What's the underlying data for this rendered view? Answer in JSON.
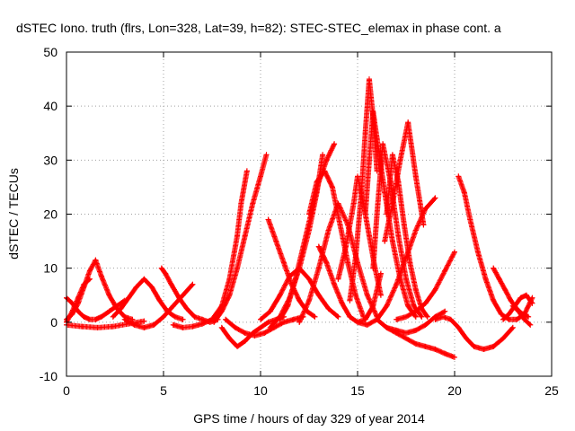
{
  "chart_data": {
    "type": "scatter",
    "title": "dSTEC Iono. truth (flrs, Lon=328, Lat=39, h=82): STEC-STEC_elemax in phase cont. a",
    "xlabel": "GPS time / hours of day 329 of year 2014",
    "ylabel": "dSTEC  / TECUs",
    "xlim": [
      0,
      25
    ],
    "ylim": [
      -10,
      50
    ],
    "xticks": [
      0,
      5,
      10,
      15,
      20,
      25
    ],
    "yticks": [
      -10,
      0,
      10,
      20,
      30,
      40,
      50
    ],
    "grid": true,
    "marker": "+",
    "series_color": "#ff0000",
    "arcs": [
      {
        "x": [
          0.0,
          0.3,
          0.6,
          0.9,
          1.2,
          1.5,
          1.8,
          2.2,
          2.6,
          3.0,
          3.4
        ],
        "y": [
          0.5,
          1.5,
          3.5,
          6.5,
          9.5,
          11.5,
          8.5,
          5.0,
          2.5,
          1.0,
          0.5
        ]
      },
      {
        "x": [
          0.0,
          0.3,
          0.6,
          0.9,
          1.2,
          1.5,
          1.8,
          2.2,
          2.6,
          3.0
        ],
        "y": [
          4.5,
          3.5,
          2.0,
          1.0,
          0.5,
          0.5,
          1.0,
          2.0,
          3.0,
          4.0
        ]
      },
      {
        "x": [
          0.0,
          0.3,
          0.6,
          0.9,
          1.2
        ],
        "y": [
          0.0,
          2.0,
          4.5,
          7.0,
          8.0
        ]
      },
      {
        "x": [
          0.0,
          0.8,
          1.6,
          2.4,
          3.2,
          4.0
        ],
        "y": [
          -0.5,
          -0.8,
          -1.0,
          -0.8,
          -0.3,
          0.2
        ]
      },
      {
        "x": [
          2.4,
          2.8,
          3.2,
          3.6,
          4.0,
          4.4,
          4.8,
          5.2,
          5.6,
          6.0
        ],
        "y": [
          1.0,
          2.5,
          4.5,
          6.5,
          8.0,
          6.5,
          4.0,
          2.0,
          1.0,
          0.5
        ]
      },
      {
        "x": [
          3.0,
          3.5,
          4.0,
          4.5,
          5.0,
          5.5,
          6.0,
          6.5
        ],
        "y": [
          0.5,
          -0.5,
          -1.0,
          -0.5,
          1.0,
          3.0,
          5.0,
          7.0
        ]
      },
      {
        "x": [
          4.9,
          5.1,
          5.4,
          5.8,
          6.2,
          6.6,
          7.0,
          7.4,
          7.8
        ],
        "y": [
          10.0,
          9.0,
          7.0,
          4.5,
          2.5,
          1.0,
          0.5,
          0.0,
          0.5
        ]
      },
      {
        "x": [
          5.5,
          6.0,
          6.5,
          7.0,
          7.5,
          8.0,
          8.4,
          8.8,
          9.0,
          9.3
        ],
        "y": [
          -0.5,
          -1.0,
          -0.8,
          -0.3,
          0.5,
          3.0,
          8.0,
          16.0,
          22.0,
          28.0
        ]
      },
      {
        "x": [
          7.6,
          8.0,
          8.4,
          8.8,
          9.2,
          9.6,
          10.0,
          10.3
        ],
        "y": [
          0.0,
          2.0,
          5.0,
          10.0,
          16.0,
          22.0,
          27.0,
          31.0
        ]
      },
      {
        "x": [
          8.0,
          8.4,
          8.8,
          9.2,
          9.6,
          10.0,
          10.4,
          10.8,
          11.2
        ],
        "y": [
          -1.0,
          -3.0,
          -4.5,
          -3.5,
          -2.0,
          -1.0,
          0.0,
          0.5,
          1.0
        ]
      },
      {
        "x": [
          8.2,
          8.7,
          9.2,
          9.7,
          10.2,
          10.7,
          11.2,
          11.7,
          12.2
        ],
        "y": [
          0.5,
          -1.0,
          -2.0,
          -2.5,
          -2.0,
          -1.0,
          0.0,
          0.5,
          1.0
        ]
      },
      {
        "x": [
          10.4,
          10.8,
          11.2,
          11.6,
          12.0,
          12.4,
          12.8
        ],
        "y": [
          19.0,
          15.0,
          11.0,
          7.0,
          4.0,
          2.0,
          1.0
        ]
      },
      {
        "x": [
          10.0,
          10.5,
          11.0,
          11.5,
          12.0,
          12.5,
          13.0,
          13.5,
          14.0
        ],
        "y": [
          0.5,
          2.0,
          5.0,
          8.5,
          10.0,
          8.0,
          5.0,
          2.5,
          1.0
        ]
      },
      {
        "x": [
          10.5,
          11.0,
          11.5,
          12.0,
          12.5,
          12.9,
          13.2
        ],
        "y": [
          -1.0,
          1.0,
          4.5,
          10.0,
          17.0,
          24.0,
          31.0
        ]
      },
      {
        "x": [
          11.0,
          11.4,
          11.8,
          12.2,
          12.6,
          13.0,
          13.4,
          13.8
        ],
        "y": [
          0.5,
          3.0,
          8.0,
          14.0,
          20.0,
          26.0,
          30.0,
          33.0
        ]
      },
      {
        "x": [
          12.5,
          12.9,
          13.3,
          13.7,
          14.1,
          14.5,
          14.9,
          15.3
        ],
        "y": [
          20.0,
          26.0,
          28.0,
          25.0,
          18.0,
          11.0,
          5.0,
          1.0
        ]
      },
      {
        "x": [
          12.0,
          12.5,
          13.0,
          13.5,
          14.0,
          14.5,
          15.0,
          15.5,
          16.0
        ],
        "y": [
          0.0,
          4.0,
          10.0,
          17.0,
          22.0,
          18.0,
          11.0,
          5.0,
          1.0
        ]
      },
      {
        "x": [
          13.0,
          13.4,
          13.8,
          14.2,
          14.6,
          15.0,
          15.4,
          15.8,
          16.2
        ],
        "y": [
          14.0,
          11.0,
          7.0,
          3.5,
          1.0,
          0.0,
          0.5,
          3.0,
          9.0
        ]
      },
      {
        "x": [
          14.0,
          14.4,
          14.8,
          15.0,
          15.3,
          15.6,
          15.9,
          16.2
        ],
        "y": [
          8.0,
          14.0,
          22.0,
          27.0,
          22.0,
          16.0,
          10.0,
          5.0
        ]
      },
      {
        "x": [
          14.6,
          14.9,
          15.2,
          15.4,
          15.6,
          15.8,
          16.0
        ],
        "y": [
          4.0,
          12.0,
          24.0,
          35.0,
          45.0,
          38.0,
          28.0
        ]
      },
      {
        "x": [
          15.4,
          15.6,
          15.8,
          16.0,
          16.4,
          16.8,
          17.2,
          17.6,
          18.0
        ],
        "y": [
          20.0,
          30.0,
          39.0,
          34.0,
          24.0,
          15.0,
          8.0,
          3.0,
          1.0
        ]
      },
      {
        "x": [
          15.8,
          16.0,
          16.3,
          16.7,
          17.1,
          17.5,
          17.9,
          18.3
        ],
        "y": [
          10.0,
          20.0,
          33.0,
          26.0,
          16.0,
          8.0,
          3.0,
          1.0
        ]
      },
      {
        "x": [
          16.5,
          16.8,
          17.1,
          17.4,
          17.7,
          18.0,
          18.3,
          18.6
        ],
        "y": [
          20.0,
          31.0,
          26.0,
          18.0,
          11.0,
          6.0,
          2.5,
          1.0
        ]
      },
      {
        "x": [
          16.4,
          16.8,
          17.2,
          17.6,
          18.0,
          18.4
        ],
        "y": [
          15.0,
          22.0,
          30.0,
          37.0,
          27.0,
          18.0
        ]
      },
      {
        "x": [
          15.0,
          15.5,
          16.0,
          16.5,
          17.0,
          17.5,
          18.0,
          18.5,
          19.0
        ],
        "y": [
          0.0,
          -0.5,
          0.5,
          3.0,
          7.0,
          12.0,
          17.0,
          21.0,
          23.0
        ]
      },
      {
        "x": [
          16.0,
          16.5,
          17.0,
          17.5,
          18.0,
          18.5,
          19.0,
          19.5,
          20.0
        ],
        "y": [
          0.5,
          -1.0,
          -2.0,
          -3.0,
          -4.0,
          -4.5,
          -5.0,
          -5.8,
          -6.5
        ]
      },
      {
        "x": [
          16.5,
          17.0,
          17.5,
          18.0,
          18.5,
          19.0,
          19.5
        ],
        "y": [
          -1.0,
          -1.5,
          -2.0,
          -1.5,
          -0.5,
          1.0,
          2.0
        ]
      },
      {
        "x": [
          17.0,
          17.5,
          18.0,
          18.5,
          19.0,
          19.5,
          20.0
        ],
        "y": [
          0.5,
          1.0,
          2.0,
          3.5,
          6.0,
          9.5,
          13.0
        ]
      },
      {
        "x": [
          19.0,
          19.4,
          19.8,
          20.2,
          20.6,
          21.0,
          21.5,
          22.0,
          22.5,
          23.0
        ],
        "y": [
          0.5,
          1.0,
          0.5,
          -1.0,
          -3.0,
          -4.5,
          -5.0,
          -4.5,
          -3.0,
          -1.0
        ]
      },
      {
        "x": [
          20.2,
          20.5,
          20.8,
          21.2,
          21.6,
          22.0,
          22.4,
          22.8,
          23.2,
          23.6,
          24.0
        ],
        "y": [
          27.0,
          24.0,
          19.0,
          13.0,
          8.0,
          4.0,
          1.5,
          0.5,
          0.5,
          1.5,
          4.5
        ]
      },
      {
        "x": [
          22.0,
          22.3,
          22.6,
          22.9,
          23.2,
          23.5,
          23.8
        ],
        "y": [
          10.0,
          8.0,
          6.0,
          4.0,
          2.5,
          1.5,
          1.0
        ]
      },
      {
        "x": [
          22.5,
          22.8,
          23.1,
          23.4,
          23.7,
          24.0
        ],
        "y": [
          0.5,
          1.5,
          3.0,
          4.5,
          5.0,
          3.5
        ]
      },
      {
        "x": [
          23.0,
          23.3,
          23.6,
          23.9
        ],
        "y": [
          3.0,
          2.0,
          0.5,
          -0.5
        ]
      }
    ]
  }
}
